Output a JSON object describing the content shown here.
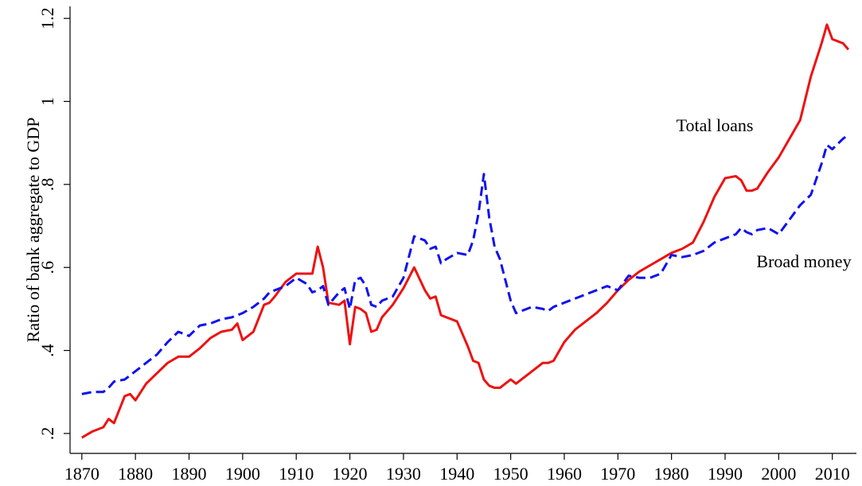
{
  "chart_data": {
    "type": "line",
    "y_label": "Ratio of bank aggregate to GDP",
    "x": [
      1870,
      1872,
      1874,
      1875,
      1876,
      1878,
      1879,
      1880,
      1882,
      1884,
      1886,
      1888,
      1890,
      1892,
      1894,
      1896,
      1898,
      1899,
      1900,
      1902,
      1904,
      1905,
      1906,
      1908,
      1910,
      1912,
      1913,
      1914,
      1915,
      1916,
      1918,
      1919,
      1920,
      1921,
      1922,
      1923,
      1924,
      1925,
      1926,
      1928,
      1930,
      1932,
      1934,
      1935,
      1936,
      1937,
      1938,
      1940,
      1942,
      1943,
      1944,
      1945,
      1946,
      1947,
      1948,
      1950,
      1951,
      1952,
      1954,
      1956,
      1957,
      1958,
      1960,
      1962,
      1964,
      1966,
      1968,
      1970,
      1972,
      1974,
      1976,
      1978,
      1980,
      1982,
      1984,
      1986,
      1988,
      1990,
      1992,
      1993,
      1994,
      1995,
      1996,
      1998,
      2000,
      2002,
      2004,
      2006,
      2008,
      2009,
      2010,
      2012,
      2013
    ],
    "series": [
      {
        "name": "Total loans",
        "color": "#ee1111",
        "dash": false,
        "values": [
          0.19,
          0.205,
          0.215,
          0.235,
          0.225,
          0.29,
          0.295,
          0.28,
          0.32,
          0.345,
          0.37,
          0.385,
          0.385,
          0.405,
          0.43,
          0.445,
          0.45,
          0.465,
          0.425,
          0.445,
          0.51,
          0.515,
          0.53,
          0.565,
          0.585,
          0.585,
          0.585,
          0.65,
          0.6,
          0.515,
          0.51,
          0.52,
          0.415,
          0.505,
          0.5,
          0.49,
          0.445,
          0.45,
          0.48,
          0.51,
          0.55,
          0.6,
          0.545,
          0.525,
          0.53,
          0.485,
          0.48,
          0.47,
          0.41,
          0.375,
          0.37,
          0.33,
          0.315,
          0.31,
          0.31,
          0.33,
          0.32,
          0.33,
          0.35,
          0.37,
          0.37,
          0.375,
          0.42,
          0.45,
          0.47,
          0.49,
          0.515,
          0.545,
          0.57,
          0.59,
          0.605,
          0.62,
          0.635,
          0.645,
          0.66,
          0.71,
          0.77,
          0.815,
          0.82,
          0.81,
          0.785,
          0.785,
          0.79,
          0.83,
          0.865,
          0.91,
          0.955,
          1.06,
          1.14,
          1.185,
          1.15,
          1.14,
          1.125
        ]
      },
      {
        "name": "Broad money",
        "color": "#1111ee",
        "dash": true,
        "values": [
          0.295,
          0.3,
          0.3,
          0.31,
          0.325,
          0.33,
          0.34,
          0.35,
          0.37,
          0.39,
          0.42,
          0.445,
          0.435,
          0.46,
          0.465,
          0.475,
          0.48,
          0.485,
          0.49,
          0.505,
          0.525,
          0.54,
          0.545,
          0.555,
          0.575,
          0.56,
          0.54,
          0.545,
          0.555,
          0.51,
          0.54,
          0.55,
          0.5,
          0.57,
          0.575,
          0.555,
          0.51,
          0.505,
          0.52,
          0.53,
          0.575,
          0.675,
          0.665,
          0.645,
          0.65,
          0.61,
          0.62,
          0.635,
          0.63,
          0.665,
          0.73,
          0.825,
          0.72,
          0.65,
          0.62,
          0.52,
          0.49,
          0.495,
          0.505,
          0.5,
          0.495,
          0.505,
          0.515,
          0.525,
          0.535,
          0.545,
          0.555,
          0.545,
          0.58,
          0.575,
          0.575,
          0.585,
          0.63,
          0.625,
          0.63,
          0.64,
          0.66,
          0.67,
          0.68,
          0.695,
          0.685,
          0.68,
          0.69,
          0.695,
          0.68,
          0.715,
          0.75,
          0.775,
          0.85,
          0.895,
          0.885,
          0.91,
          0.92
        ]
      }
    ],
    "xlim": [
      1867.8,
      2014.5
    ],
    "ylim": [
      0.152,
      1.229
    ],
    "xticks": [
      1870,
      1880,
      1890,
      1900,
      1910,
      1920,
      1930,
      1940,
      1950,
      1960,
      1970,
      1980,
      1990,
      2000,
      2010
    ],
    "yticks": [
      {
        "value": 0.2,
        "label": ".2"
      },
      {
        "value": 0.4,
        "label": ".4"
      },
      {
        "value": 0.6,
        "label": ".6"
      },
      {
        "value": 0.8,
        "label": ".8"
      },
      1,
      1.2
    ],
    "grid": false
  }
}
